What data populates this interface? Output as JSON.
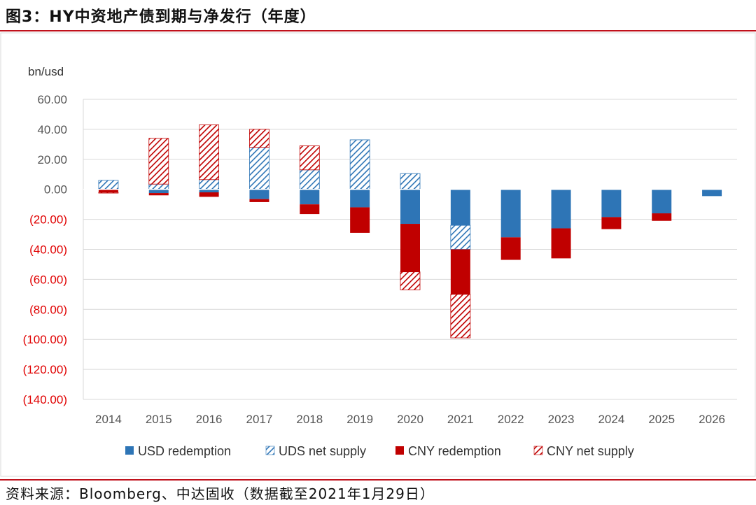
{
  "header": {
    "title": "图3：HY中资地产债到期与净发行（年度）"
  },
  "footer": {
    "source": "资料来源：Bloomberg、中达固收（数据截至2021年1月29日）"
  },
  "colors": {
    "usd_redemption": "#2e75b6",
    "uds_net_supply": "#2e75b6",
    "cny_redemption": "#c00000",
    "cny_net_supply": "#c00000",
    "negative_tick": "#e00000",
    "positive_tick": "#555555",
    "grid": "#d9d9d9"
  },
  "chart_data": {
    "type": "bar",
    "stacked": true,
    "ylabel": "bn/usd",
    "ylim": [
      -140,
      60
    ],
    "yticks": [
      60,
      40,
      20,
      0,
      -20,
      -40,
      -60,
      -80,
      -100,
      -120,
      -140
    ],
    "ytick_labels": [
      "60.00",
      "40.00",
      "20.00",
      "0.00",
      "(20.00)",
      "(40.00)",
      "(60.00)",
      "(80.00)",
      "(100.00)",
      "(120.00)",
      "(140.00)"
    ],
    "grid": true,
    "legend_position": "bottom",
    "categories": [
      "2014",
      "2015",
      "2016",
      "2017",
      "2018",
      "2019",
      "2020",
      "2021",
      "2022",
      "2023",
      "2024",
      "2025",
      "2026"
    ],
    "series": [
      {
        "name": "USD redemption",
        "key": "usd_redemption",
        "pattern": "solid",
        "values": [
          0,
          -2.5,
          -2,
          -6.5,
          -10,
          -12,
          -23,
          -24,
          -32,
          -26,
          -18.5,
          -16,
          -4.5
        ]
      },
      {
        "name": "UDS net supply",
        "key": "uds_net_supply",
        "pattern": "hatched",
        "values": [
          6,
          3.5,
          6.5,
          28,
          13,
          33,
          10.5,
          -16,
          0,
          0,
          0,
          0,
          0
        ]
      },
      {
        "name": "CNY redemption",
        "key": "cny_redemption",
        "pattern": "solid",
        "values": [
          -2,
          -1.5,
          -3,
          -2,
          -6.5,
          -17,
          -32,
          -30,
          -15,
          -20,
          -8,
          -5,
          0
        ]
      },
      {
        "name": "CNY net supply",
        "key": "cny_net_supply",
        "pattern": "hatched",
        "values": [
          -0.5,
          30.5,
          36.5,
          12,
          16,
          0,
          -12,
          -29,
          0,
          0,
          0,
          0,
          0
        ]
      }
    ]
  }
}
